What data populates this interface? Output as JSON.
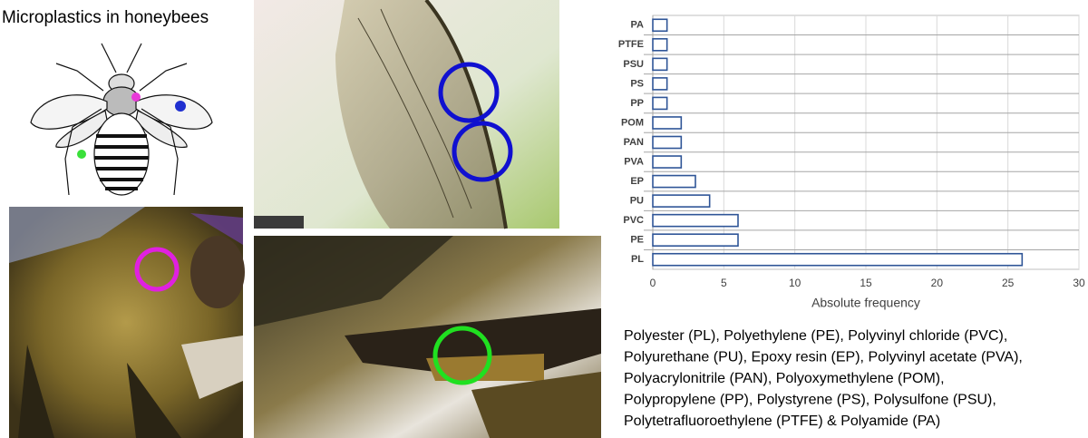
{
  "figure_title": "Microplastics in honeybees",
  "caption_lines": [
    "Polyester (PL), Polyethylene (PE), Polyvinyl chloride (PVC),",
    "Polyurethane (PU), Epoxy resin (EP), Polyvinyl acetate (PVA),",
    "Polyacrylonitrile (PAN), Polyoxymethylene (POM),",
    "Polypropylene (PP), Polystyrene (PS), Polysulfone (PSU),",
    "Polytetrafluoroethylene (PTFE) & Polyamide (PA)"
  ],
  "chart_data": {
    "type": "barh",
    "categories": [
      "PA",
      "PTFE",
      "PSU",
      "PS",
      "PP",
      "POM",
      "PAN",
      "PVA",
      "EP",
      "PU",
      "PVC",
      "PE",
      "PL"
    ],
    "values": [
      1,
      1,
      1,
      1,
      1,
      2,
      2,
      2,
      3,
      4,
      6,
      6,
      26
    ],
    "color": "#2f5597",
    "xlabel": "Absolute frequency",
    "xlim": [
      0,
      30
    ],
    "xticks": [
      0,
      5,
      10,
      15,
      20,
      25,
      30
    ],
    "grid": true
  }
}
